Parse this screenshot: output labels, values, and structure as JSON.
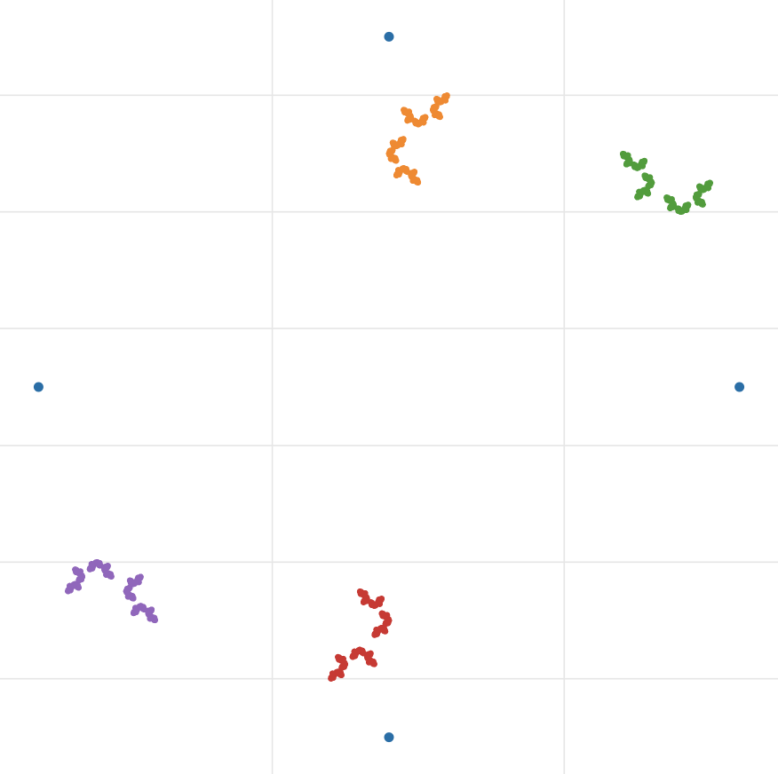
{
  "chart_data": {
    "type": "scatter",
    "title": "",
    "xlabel": "",
    "ylabel": "",
    "grid": true,
    "legend": "none",
    "xlim": [
      -1.11,
      1.11
    ],
    "ylim": [
      -1.105,
      1.105
    ],
    "x_gridlines": [
      -0.333,
      0.5
    ],
    "y_gridlines": [
      -0.833,
      -0.5,
      -0.167,
      0.167,
      0.5,
      0.833
    ],
    "vertices": {
      "color": "#2b6ea6",
      "points": [
        {
          "x": 0,
          "y": 1
        },
        {
          "x": 1,
          "y": 0
        },
        {
          "x": 0,
          "y": -1
        },
        {
          "x": -1,
          "y": 0
        }
      ]
    },
    "fractal": {
      "maps": [
        {
          "a": 0.5,
          "b": 0,
          "c": 0,
          "d": -0.5,
          "e": 0,
          "f": 0.5
        },
        {
          "a": 0,
          "b": -0.5,
          "c": -0.5,
          "d": 0,
          "e": 0.5,
          "f": 0.5
        }
      ],
      "points_per_series": 2400
    },
    "series": [
      {
        "color": "#ee8a33",
        "from": {
          "x": 0,
          "y": 1
        },
        "to": {
          "x": -0.5,
          "y": 0.5
        }
      },
      {
        "color": "#529c3d",
        "from": {
          "x": 0.5,
          "y": 0.5
        },
        "to": {
          "x": 1,
          "y": 0
        }
      },
      {
        "color": "#c63a34",
        "from": {
          "x": 0,
          "y": -1
        },
        "to": {
          "x": 0.5,
          "y": -0.5
        }
      },
      {
        "color": "#9067bb",
        "from": {
          "x": -0.5,
          "y": -0.5
        },
        "to": {
          "x": -1,
          "y": 0
        }
      }
    ]
  }
}
